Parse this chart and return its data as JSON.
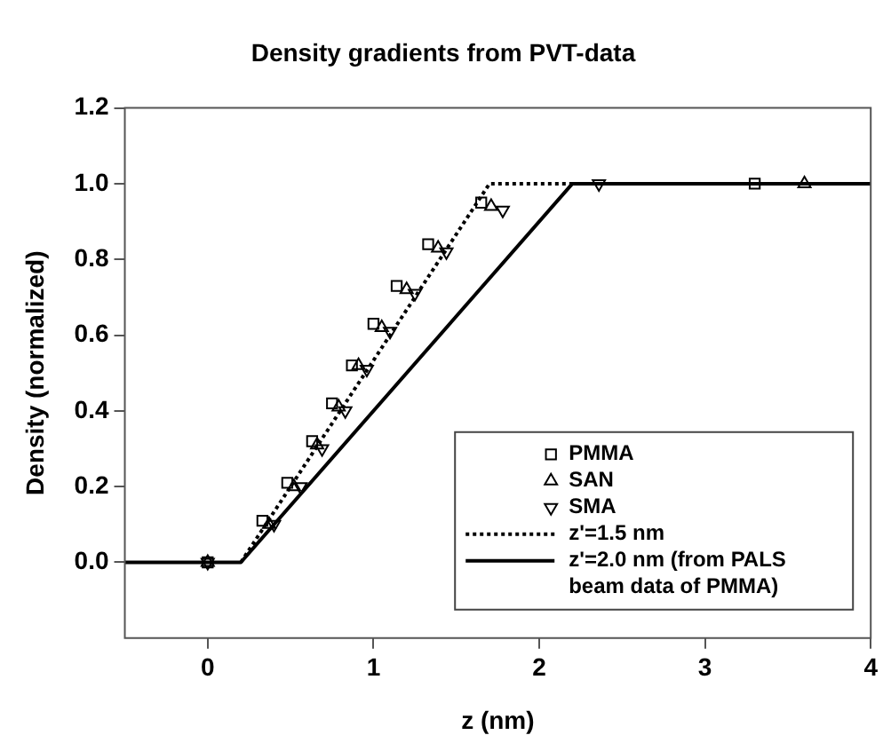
{
  "chart_data": {
    "type": "scatter",
    "title": "Density gradients from PVT-data",
    "xlabel": "z (nm)",
    "ylabel": "Density (normalized)",
    "xlim": [
      -0.5,
      4
    ],
    "xticks": [
      0,
      1,
      2,
      3,
      4
    ],
    "ylim": [
      -0.2,
      1.2
    ],
    "yticks": [
      {
        "value": 0,
        "label": "0.0"
      },
      0.2,
      0.4,
      0.6,
      0.8,
      {
        "value": 1,
        "label": "1.0"
      },
      1.2
    ],
    "grid": false,
    "legend": "bottom right",
    "series": [
      {
        "name": "PMMA",
        "color": "#000000",
        "marker": "square",
        "x": [
          0,
          0.33,
          0.48,
          0.63,
          0.75,
          0.87,
          1.0,
          1.14,
          1.33,
          1.65,
          3.3
        ],
        "values": [
          0,
          0.11,
          0.21,
          0.32,
          0.42,
          0.52,
          0.63,
          0.73,
          0.84,
          0.95,
          1.0
        ]
      },
      {
        "name": "SAN",
        "color": "#000000",
        "marker": "triangle",
        "x": [
          0,
          0.37,
          0.52,
          0.66,
          0.79,
          0.91,
          1.05,
          1.2,
          1.39,
          1.71,
          3.6
        ],
        "values": [
          0,
          0.1,
          0.2,
          0.31,
          0.41,
          0.52,
          0.62,
          0.72,
          0.83,
          0.94,
          1.0
        ]
      },
      {
        "name": "SMA",
        "color": "#000000",
        "marker": "triangle-down",
        "x": [
          0,
          0.4,
          0.56,
          0.69,
          0.83,
          0.96,
          1.1,
          1.25,
          1.44,
          1.78,
          2.36
        ],
        "values": [
          0,
          0.1,
          0.2,
          0.3,
          0.4,
          0.51,
          0.61,
          0.71,
          0.82,
          0.93,
          1.0
        ]
      },
      {
        "name": "z'=1.5 nm",
        "type": "line",
        "color": "#000000",
        "line_style": "dotted",
        "marker": "none",
        "x": [
          0.2,
          1.7,
          2.2
        ],
        "values": [
          0,
          1,
          1
        ]
      },
      {
        "name": "z'=2.0 nm (from PALS beam data of PMMA)",
        "type": "line",
        "color": "#000000",
        "line_style": "solid",
        "marker": "none",
        "x": [
          -0.5,
          0.2,
          2.2,
          4
        ],
        "values": [
          0,
          0,
          1,
          1
        ]
      }
    ]
  }
}
